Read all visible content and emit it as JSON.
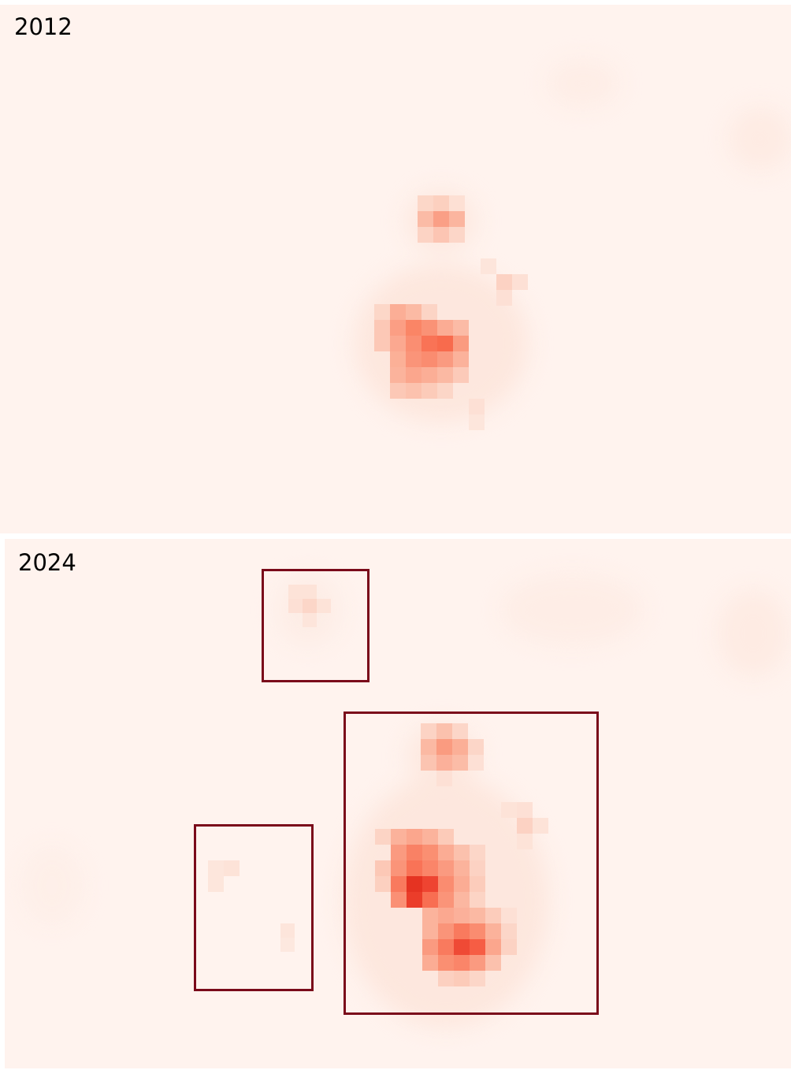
{
  "panels": [
    {
      "id": "2012",
      "label": "2012",
      "hotspots": [
        {
          "name": "north-cluster",
          "intensity": 0.35
        },
        {
          "name": "central-cluster",
          "intensity": 0.62
        },
        {
          "name": "east-spot",
          "intensity": 0.18
        }
      ]
    },
    {
      "id": "2024",
      "label": "2024",
      "hotspots": [
        {
          "name": "north-cluster",
          "intensity": 0.38
        },
        {
          "name": "central-cluster",
          "intensity": 0.85
        },
        {
          "name": "south-cluster",
          "intensity": 0.78
        },
        {
          "name": "east-spot",
          "intensity": 0.22
        },
        {
          "name": "northwest-spot",
          "intensity": 0.15
        },
        {
          "name": "west-spots",
          "intensity": 0.08
        }
      ],
      "highlight_count": 3
    }
  ],
  "colors": {
    "background": "#fff3ee",
    "low": "#fde0d4",
    "mid": "#fb8a6c",
    "high": "#e0251f",
    "box_border": "#7a0a1a"
  }
}
